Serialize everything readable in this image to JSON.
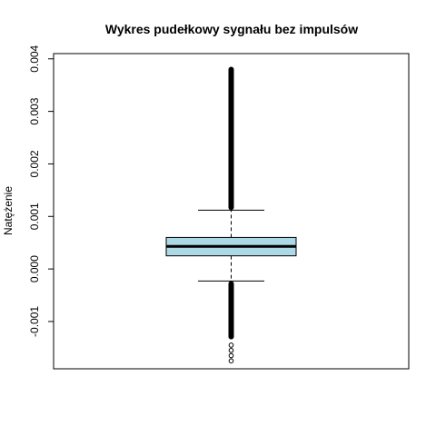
{
  "chart_data": {
    "type": "box",
    "title": "Wykres pudełkowy sygnału bez impulsów",
    "xlabel": "",
    "ylabel": "Natężenie",
    "ylim": [
      -0.0019,
      0.0041
    ],
    "yticks": [
      {
        "value": -0.001,
        "label": "-0.001"
      },
      {
        "value": 0.0,
        "label": "0.000"
      },
      {
        "value": 0.001,
        "label": "0.001"
      },
      {
        "value": 0.002,
        "label": "0.002"
      },
      {
        "value": 0.003,
        "label": "0.003"
      },
      {
        "value": 0.004,
        "label": "0.004"
      }
    ],
    "box": {
      "whisker_low": -0.00023,
      "q1": 0.00025,
      "median": 0.00043,
      "q3": 0.0006,
      "whisker_high": 0.00112,
      "fill": "#add8e6"
    },
    "outliers_high_range": [
      0.00112,
      0.00385
    ],
    "outliers_low_range": [
      -0.00134,
      -0.00023
    ],
    "outliers_low_sparse": [
      -0.00145,
      -0.00155,
      -0.00165,
      -0.00175
    ],
    "grid": false,
    "legend": "none"
  }
}
